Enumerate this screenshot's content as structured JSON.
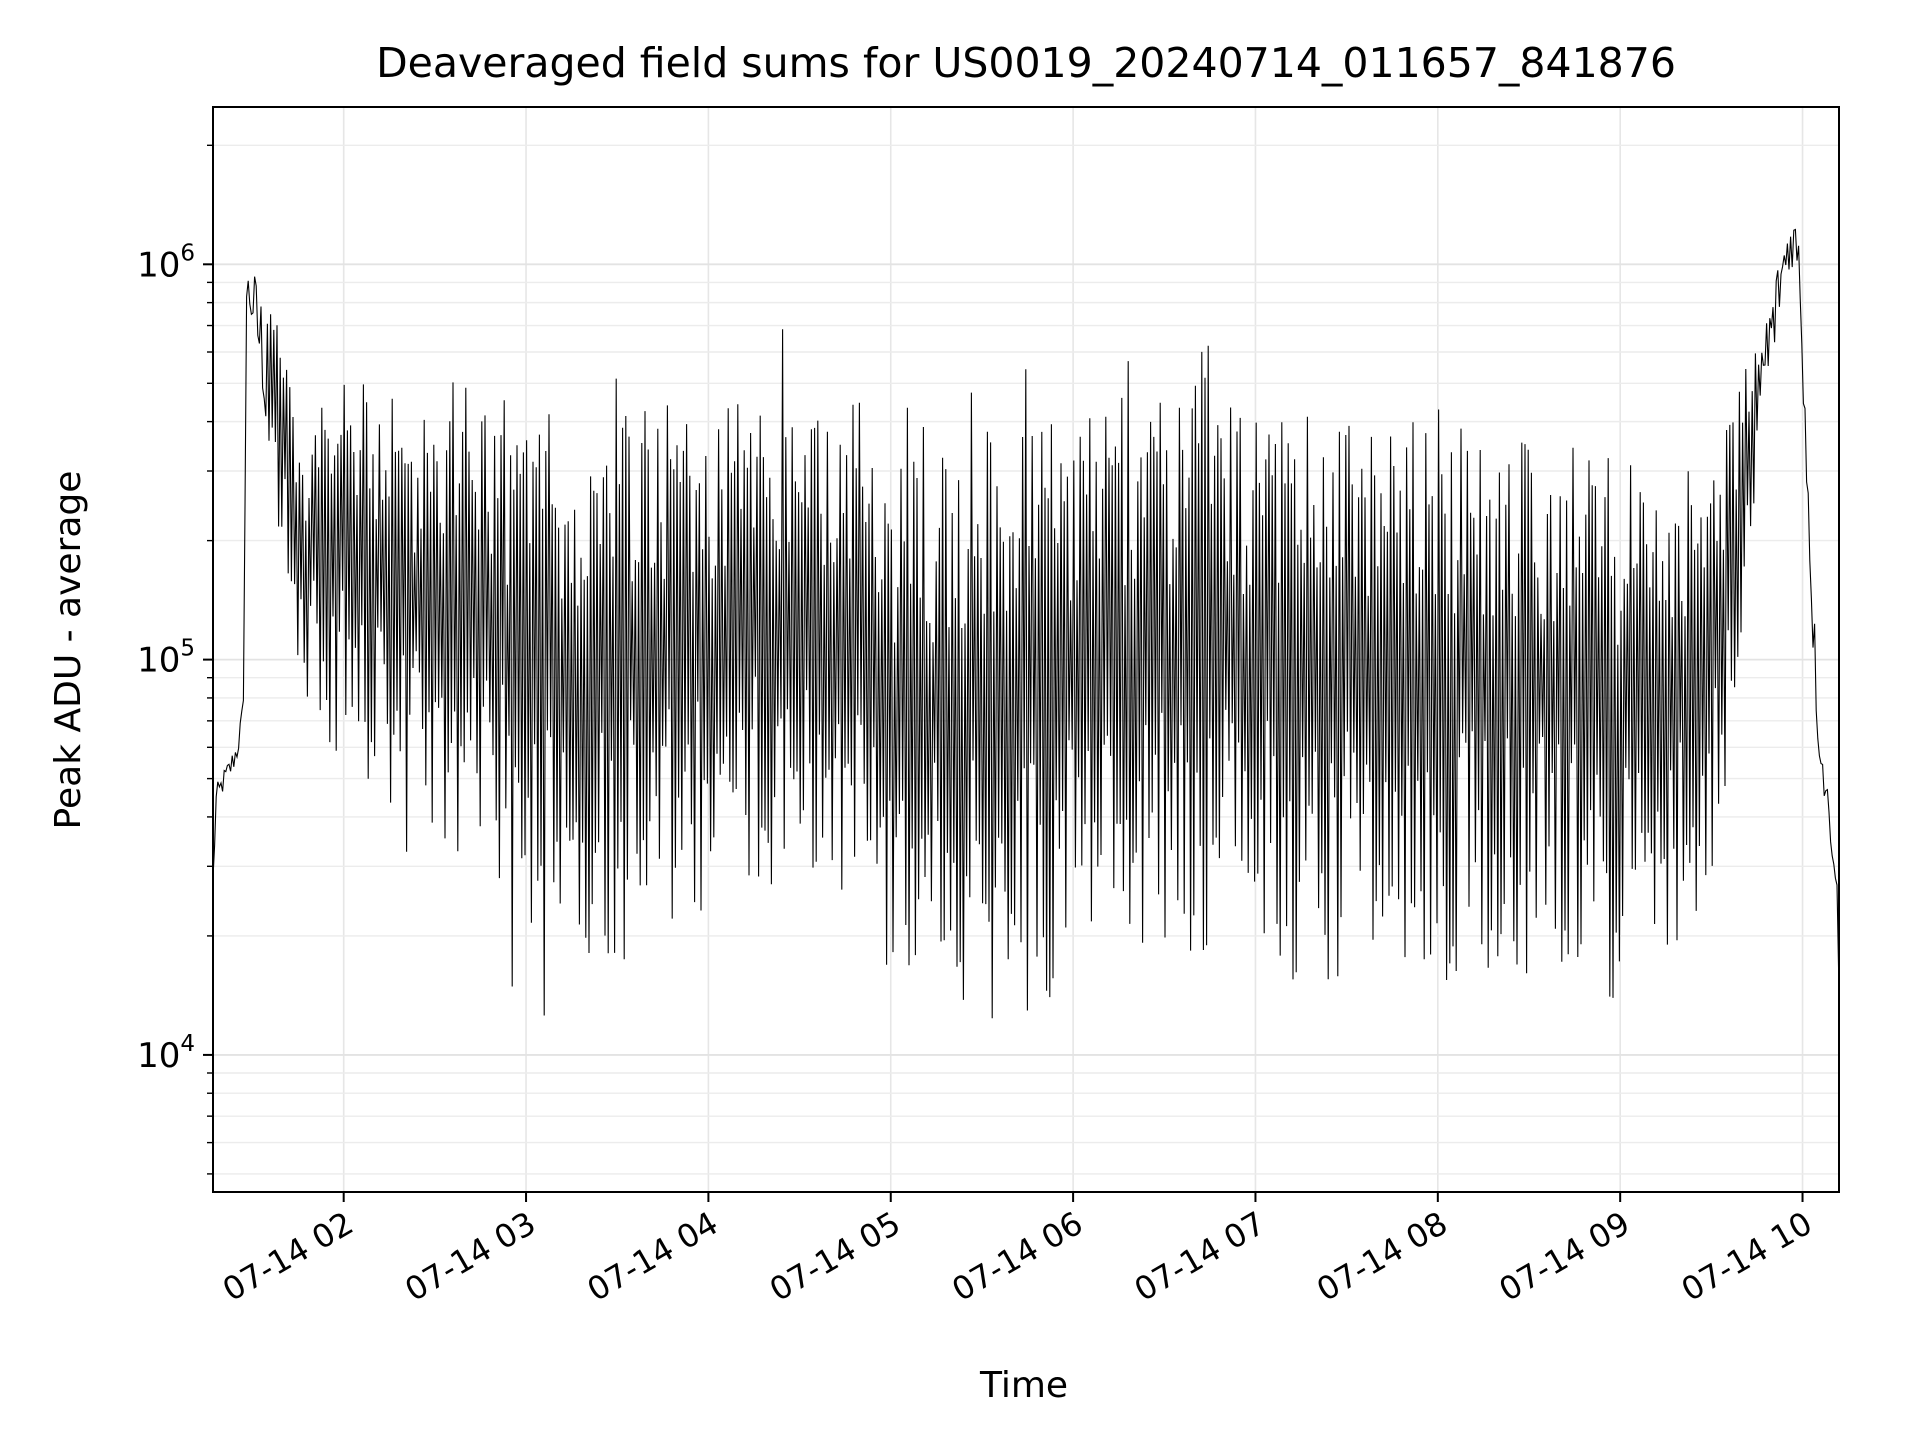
{
  "chart_data": {
    "type": "line",
    "title": "Deaveraged field sums for US0019_20240714_011657_841876",
    "xlabel": "Time",
    "ylabel": "Peak ADU - average",
    "yscale": "log",
    "ylim": [
      4500,
      2500000
    ],
    "xlim": [
      "2024-07-14T01:17:00",
      "2024-07-14T10:12:00"
    ],
    "grid": true,
    "line_color": "#000000",
    "x_ticks": [
      {
        "time": "2024-07-14T02:00:00",
        "label": "07-14 02"
      },
      {
        "time": "2024-07-14T03:00:00",
        "label": "07-14 03"
      },
      {
        "time": "2024-07-14T04:00:00",
        "label": "07-14 04"
      },
      {
        "time": "2024-07-14T05:00:00",
        "label": "07-14 05"
      },
      {
        "time": "2024-07-14T06:00:00",
        "label": "07-14 06"
      },
      {
        "time": "2024-07-14T07:00:00",
        "label": "07-14 07"
      },
      {
        "time": "2024-07-14T08:00:00",
        "label": "07-14 08"
      },
      {
        "time": "2024-07-14T09:00:00",
        "label": "07-14 09"
      },
      {
        "time": "2024-07-14T10:00:00",
        "label": "07-14 10"
      }
    ],
    "y_ticks": [
      {
        "value": 10000,
        "label_base": "10",
        "label_exp": "4"
      },
      {
        "value": 100000,
        "label_base": "10",
        "label_exp": "5"
      },
      {
        "value": 1000000,
        "label_base": "10",
        "label_exp": "6"
      }
    ],
    "series": [
      {
        "x": [
          "2024-07-14T01:17:00",
          "2024-07-14T01:18:00",
          "2024-07-14T01:20:00",
          "2024-07-14T01:23:00",
          "2024-07-14T01:25:00",
          "2024-07-14T01:27:00",
          "2024-07-14T01:28:00",
          "2024-07-14T01:29:00",
          "2024-07-14T01:30:00",
          "2024-07-14T01:31:00",
          "2024-07-14T01:32:00",
          "2024-07-14T01:34:00",
          "2024-07-14T01:36:00",
          "2024-07-14T01:39:00",
          "2024-07-14T01:42:00",
          "2024-07-14T01:45:00",
          "2024-07-14T01:48:00",
          "2024-07-14T01:52:00",
          "2024-07-14T01:56:00",
          "2024-07-14T02:00:00",
          "2024-07-14T02:05:00",
          "2024-07-14T02:10:00",
          "2024-07-14T02:20:00",
          "2024-07-14T02:30:00",
          "2024-07-14T02:40:00",
          "2024-07-14T02:50:00",
          "2024-07-14T03:00:00",
          "2024-07-14T03:10:00",
          "2024-07-14T03:20:00",
          "2024-07-14T03:30:00",
          "2024-07-14T03:45:00",
          "2024-07-14T04:00:00",
          "2024-07-14T04:15:00",
          "2024-07-14T04:30:00",
          "2024-07-14T04:45:00",
          "2024-07-14T05:00:00",
          "2024-07-14T05:15:00",
          "2024-07-14T05:30:00",
          "2024-07-14T05:45:00",
          "2024-07-14T06:00:00",
          "2024-07-14T06:15:00",
          "2024-07-14T06:30:00",
          "2024-07-14T06:45:00",
          "2024-07-14T07:00:00",
          "2024-07-14T07:15:00",
          "2024-07-14T07:30:00",
          "2024-07-14T07:45:00",
          "2024-07-14T08:00:00",
          "2024-07-14T08:15:00",
          "2024-07-14T08:30:00",
          "2024-07-14T08:45:00",
          "2024-07-14T09:00:00",
          "2024-07-14T09:10:00",
          "2024-07-14T09:20:00",
          "2024-07-14T09:30:00",
          "2024-07-14T09:35:00",
          "2024-07-14T09:40:00",
          "2024-07-14T09:45:00",
          "2024-07-14T09:50:00",
          "2024-07-14T09:53:00",
          "2024-07-14T09:55:00",
          "2024-07-14T09:57:00",
          "2024-07-14T09:59:00",
          "2024-07-14T10:01:00",
          "2024-07-14T10:03:00",
          "2024-07-14T10:05:00",
          "2024-07-14T10:07:00",
          "2024-07-14T10:09:00",
          "2024-07-14T10:11:00",
          "2024-07-14T10:12:00"
        ],
        "high": [
          30000,
          48000,
          52000,
          58000,
          64000,
          80000,
          1000000,
          1000000,
          1000000,
          950000,
          900000,
          850000,
          820000,
          700000,
          500000,
          400000,
          350000,
          450000,
          500000,
          550000,
          500000,
          500000,
          450000,
          430000,
          420000,
          420000,
          400000,
          350000,
          400000,
          420000,
          450000,
          450000,
          480000,
          450000,
          350000,
          300000,
          350000,
          400000,
          420000,
          450000,
          450000,
          450000,
          450000,
          450000,
          420000,
          420000,
          400000,
          400000,
          380000,
          350000,
          350000,
          300000,
          350000,
          300000,
          320000,
          400000,
          550000,
          700000,
          900000,
          1100000,
          1300000,
          1400000,
          1200000,
          500000,
          200000,
          80000,
          55000,
          45000,
          35000,
          18000
        ],
        "low": [
          25000,
          40000,
          45000,
          50000,
          55000,
          70000,
          700000,
          700000,
          650000,
          600000,
          500000,
          400000,
          250000,
          200000,
          150000,
          100000,
          80000,
          70000,
          60000,
          60000,
          50000,
          40000,
          35000,
          30000,
          28000,
          25000,
          22000,
          18000,
          18000,
          17000,
          17000,
          20000,
          25000,
          28000,
          30000,
          15000,
          13000,
          12000,
          13000,
          15000,
          18000,
          18000,
          18000,
          18000,
          15000,
          15000,
          15000,
          15000,
          16000,
          17000,
          17000,
          13000,
          15000,
          18000,
          22000,
          50000,
          120000,
          300000,
          500000,
          800000,
          900000,
          1000000,
          800000,
          300000,
          120000,
          60000,
          45000,
          35000,
          25000,
          15000
        ]
      }
    ]
  }
}
